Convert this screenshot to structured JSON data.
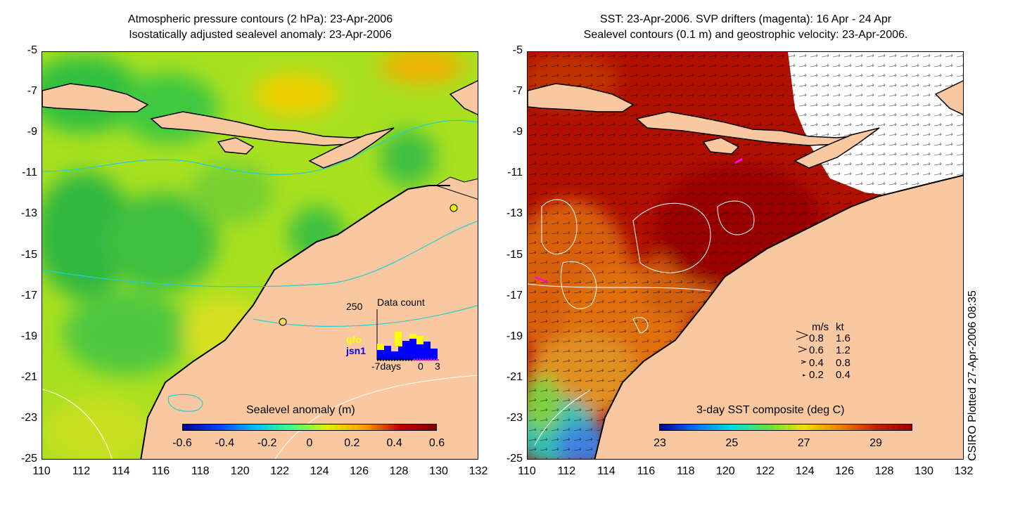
{
  "left_panel": {
    "title_line1": "Atmospheric pressure contours (2 hPa): 23-Apr-2006",
    "title_line2": "Isostatically adjusted sealevel anomaly: 23-Apr-2006",
    "colorbar_title": "Sealevel anomaly (m)",
    "colorbar_ticks": [
      "-0.6",
      "-0.4",
      "-0.2",
      "0",
      "0.2",
      "0.4",
      "0.6"
    ],
    "inset": {
      "y_label": "250",
      "title": "Data count",
      "series_labels": [
        "gfo",
        "jsn1"
      ],
      "x_labels": [
        "-7days",
        "0",
        "3"
      ]
    }
  },
  "right_panel": {
    "title_line1": "SST: 23-Apr-2006. SVP drifters (magenta): 16 Apr - 24 Apr",
    "title_line2": "Sealevel contours (0.1 m) and geostrophic velocity: 23-Apr-2006.",
    "colorbar_title": "3-day SST composite (deg C)",
    "colorbar_ticks": [
      "23",
      "25",
      "27",
      "29"
    ],
    "legend": {
      "header_ms": "m/s",
      "header_kt": "kt",
      "rows": [
        {
          "ms": "0.8",
          "kt": "1.6"
        },
        {
          "ms": "0.6",
          "kt": "1.2"
        },
        {
          "ms": "0.4",
          "kt": "0.8"
        },
        {
          "ms": "0.2",
          "kt": "0.4"
        }
      ]
    }
  },
  "axes": {
    "y_ticks": [
      "-5",
      "-7",
      "-9",
      "-11",
      "-13",
      "-15",
      "-17",
      "-19",
      "-21",
      "-23",
      "-25"
    ],
    "x_ticks": [
      "110",
      "112",
      "114",
      "116",
      "118",
      "120",
      "122",
      "124",
      "126",
      "128",
      "130",
      "132"
    ]
  },
  "credit": "CSIRO Plotted 27-Apr-2006 08:35",
  "colors": {
    "land": "#f9c8a0",
    "sla_scale": [
      "#00008f",
      "#0040ff",
      "#00c0ff",
      "#40ff80",
      "#e0f000",
      "#ffa000",
      "#c00000",
      "#800000"
    ],
    "sst_scale": [
      "#00008f",
      "#0070ff",
      "#00e0e0",
      "#60e040",
      "#f0e000",
      "#f08000",
      "#c02000",
      "#9a0000"
    ],
    "drifter": "#ff00ff",
    "gfo_bar": "#ffff00",
    "jsn1_bar": "#0000ff"
  }
}
